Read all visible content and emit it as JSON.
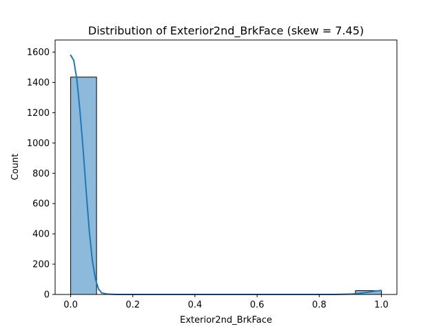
{
  "chart_data": {
    "type": "bar",
    "subtype": "histogram-with-kde",
    "title": "Distribution of Exterior2nd_BrkFace (skew = 7.45)",
    "xlabel": "Exterior2nd_BrkFace",
    "ylabel": "Count",
    "xlim": [
      -0.05,
      1.05
    ],
    "ylim": [
      0,
      1680
    ],
    "xticks": [
      0.0,
      0.2,
      0.4,
      0.6,
      0.8,
      1.0
    ],
    "xtick_labels": [
      "0.0",
      "0.2",
      "0.4",
      "0.6",
      "0.8",
      "1.0"
    ],
    "yticks": [
      0,
      200,
      400,
      600,
      800,
      1000,
      1200,
      1400,
      1600
    ],
    "ytick_labels": [
      "0",
      "200",
      "400",
      "600",
      "800",
      "1000",
      "1200",
      "1400",
      "1600"
    ],
    "bins": [
      {
        "x0": 0.0,
        "x1": 0.0833,
        "count": 1435
      },
      {
        "x0": 0.0833,
        "x1": 0.1667,
        "count": 0
      },
      {
        "x0": 0.1667,
        "x1": 0.25,
        "count": 0
      },
      {
        "x0": 0.25,
        "x1": 0.3333,
        "count": 0
      },
      {
        "x0": 0.3333,
        "x1": 0.4167,
        "count": 0
      },
      {
        "x0": 0.4167,
        "x1": 0.5,
        "count": 0
      },
      {
        "x0": 0.5,
        "x1": 0.5833,
        "count": 0
      },
      {
        "x0": 0.5833,
        "x1": 0.6667,
        "count": 0
      },
      {
        "x0": 0.6667,
        "x1": 0.75,
        "count": 0
      },
      {
        "x0": 0.75,
        "x1": 0.8333,
        "count": 0
      },
      {
        "x0": 0.8333,
        "x1": 0.9167,
        "count": 0
      },
      {
        "x0": 0.9167,
        "x1": 1.0,
        "count": 25
      }
    ],
    "kde": {
      "x": [
        0.0,
        0.01,
        0.02,
        0.03,
        0.04,
        0.05,
        0.06,
        0.07,
        0.08,
        0.09,
        0.1,
        0.12,
        0.15,
        0.2,
        0.3,
        0.5,
        0.7,
        0.8,
        0.85,
        0.9,
        0.93,
        0.96,
        0.98,
        1.0
      ],
      "y": [
        1580,
        1545,
        1420,
        1210,
        960,
        680,
        420,
        220,
        100,
        35,
        10,
        2,
        0,
        0,
        0,
        0,
        0,
        0,
        0,
        2,
        7,
        16,
        22,
        26
      ]
    },
    "colors": {
      "bar_fill": "#8dbadb",
      "bar_edge": "#000000",
      "kde_line": "#1f77b4"
    },
    "grid": false,
    "legend": "none"
  }
}
